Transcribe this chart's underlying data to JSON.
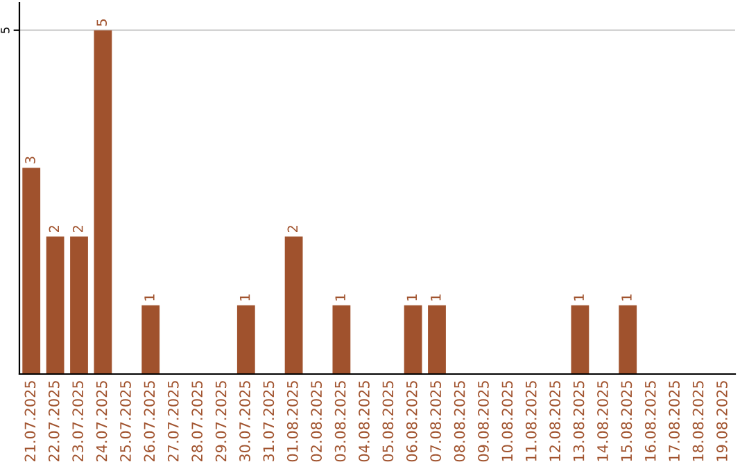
{
  "chart_data": {
    "type": "bar",
    "categories": [
      "21.07.2025",
      "22.07.2025",
      "23.07.2025",
      "24.07.2025",
      "25.07.2025",
      "26.07.2025",
      "27.07.2025",
      "28.07.2025",
      "29.07.2025",
      "30.07.2025",
      "31.07.2025",
      "01.08.2025",
      "02.08.2025",
      "03.08.2025",
      "04.08.2025",
      "05.08.2025",
      "06.08.2025",
      "07.08.2025",
      "08.08.2025",
      "09.08.2025",
      "10.08.2025",
      "11.08.2025",
      "12.08.2025",
      "13.08.2025",
      "14.08.2025",
      "15.08.2025",
      "16.08.2025",
      "17.08.2025",
      "18.08.2025",
      "19.08.2025"
    ],
    "values": [
      3,
      2,
      2,
      5,
      0,
      1,
      0,
      0,
      0,
      1,
      0,
      2,
      0,
      1,
      0,
      0,
      1,
      1,
      0,
      0,
      0,
      0,
      0,
      1,
      0,
      1,
      0,
      0,
      0,
      0
    ],
    "value_labels": [
      "3",
      "2",
      "2",
      "5",
      null,
      "1",
      null,
      null,
      null,
      "1",
      null,
      "2",
      null,
      "1",
      null,
      null,
      "1",
      "1",
      null,
      null,
      null,
      null,
      null,
      "1",
      null,
      "1",
      null,
      null,
      null,
      null
    ],
    "color": "#a0522d",
    "ylim": [
      0,
      5.4
    ],
    "yticks": [
      5
    ],
    "grid": "y"
  }
}
